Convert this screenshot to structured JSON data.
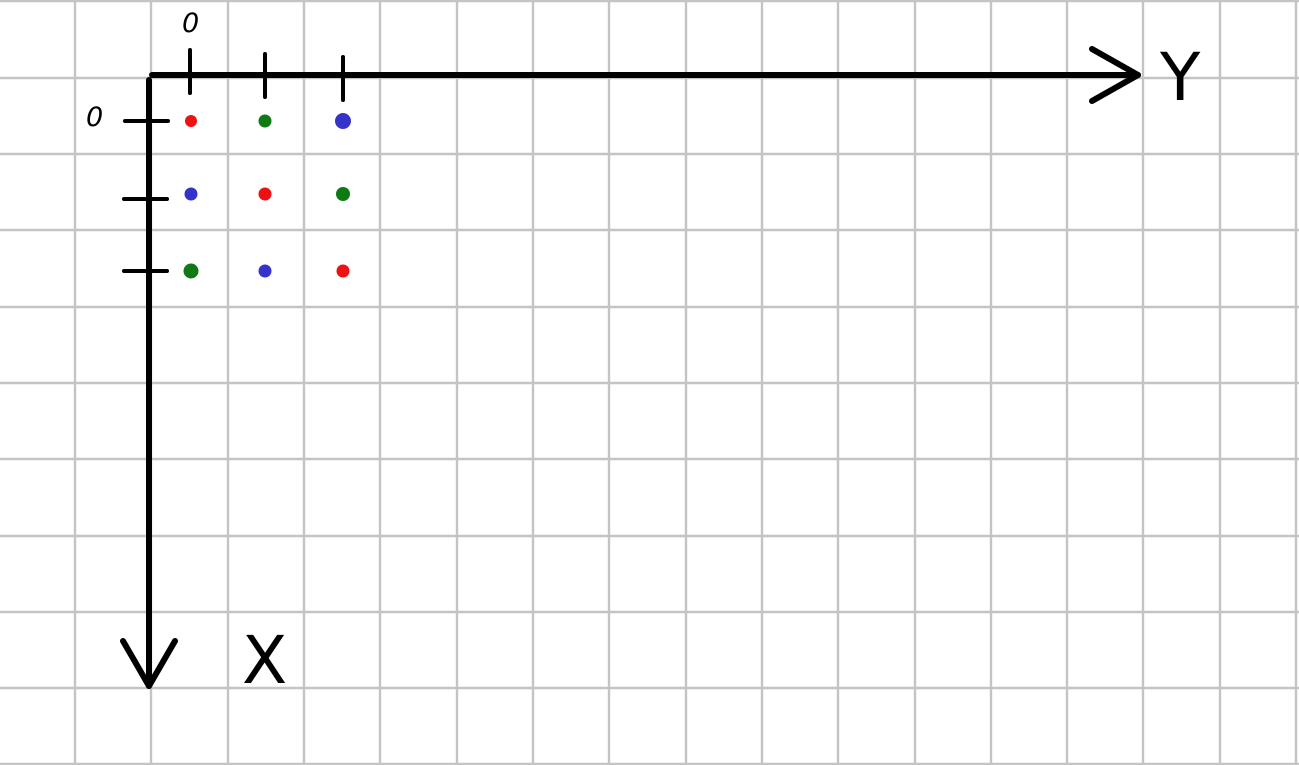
{
  "diagram": {
    "x_axis_label": "X",
    "y_axis_label": "Y",
    "x_origin_label": "0",
    "y_origin_label": "0",
    "palette": {
      "red": "#ee1111",
      "green": "#0f7a14",
      "blue": "#3533c9"
    },
    "dot_grid": [
      [
        "red",
        "green",
        "blue"
      ],
      [
        "blue",
        "red",
        "green"
      ],
      [
        "green",
        "blue",
        "red"
      ]
    ]
  }
}
